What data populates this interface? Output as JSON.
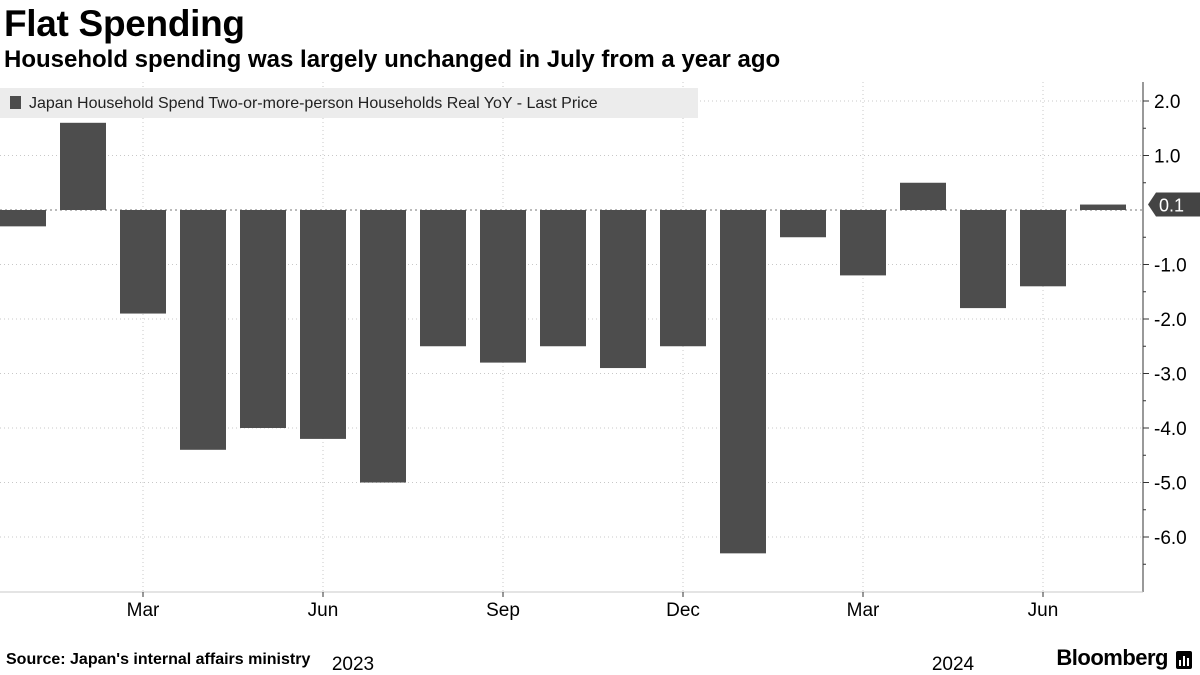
{
  "header": {
    "title": "Flat Spending",
    "subtitle": "Household spending was largely unchanged in July from a year ago"
  },
  "footer": {
    "source": "Source: Japan's internal affairs ministry",
    "brand": "Bloomberg"
  },
  "colors": {
    "bar": "#4d4d4d",
    "grid": "#c8c8c8",
    "axis": "#333333",
    "legend_bg": "#ececec"
  },
  "chart_data": {
    "type": "bar",
    "title": "Flat Spending",
    "subtitle": "Household spending was largely unchanged in July from a year ago",
    "legend": [
      "Japan Household Spend Two-or-more-person Households Real YoY - Last Price"
    ],
    "categories": [
      "2023-01",
      "2023-02",
      "2023-03",
      "2023-04",
      "2023-05",
      "2023-06",
      "2023-07",
      "2023-08",
      "2023-09",
      "2023-10",
      "2023-11",
      "2023-12",
      "2024-01",
      "2024-02",
      "2024-03",
      "2024-04",
      "2024-05",
      "2024-06",
      "2024-07"
    ],
    "values": [
      -0.3,
      1.6,
      -1.9,
      -4.4,
      -4.0,
      -4.2,
      -5.0,
      -2.5,
      -2.8,
      -2.5,
      -2.9,
      -2.5,
      -6.3,
      -0.5,
      -1.2,
      0.5,
      -1.8,
      -1.4,
      0.1
    ],
    "ylim": [
      -7.0,
      2.3
    ],
    "yticks": [
      2.0,
      1.0,
      -1.0,
      -2.0,
      -3.0,
      -4.0,
      -5.0,
      -6.0
    ],
    "ytick_labels": [
      "2.0",
      "1.0",
      "-1.0",
      "-2.0",
      "-3.0",
      "-4.0",
      "-5.0",
      "-6.0"
    ],
    "last_value_label": "0.1",
    "xticks": [
      {
        "index": 2,
        "label": "Mar"
      },
      {
        "index": 5,
        "label": "Jun"
      },
      {
        "index": 8,
        "label": "Sep"
      },
      {
        "index": 11,
        "label": "Dec"
      },
      {
        "index": 14,
        "label": "Mar"
      },
      {
        "index": 17,
        "label": "Jun"
      }
    ],
    "year_labels": [
      {
        "index": 5,
        "label": "2023"
      },
      {
        "index": 15,
        "label": "2024"
      }
    ],
    "xlabel": "",
    "ylabel": "",
    "y_axis_side": "right",
    "legend_position": "top-left",
    "grid": true
  }
}
